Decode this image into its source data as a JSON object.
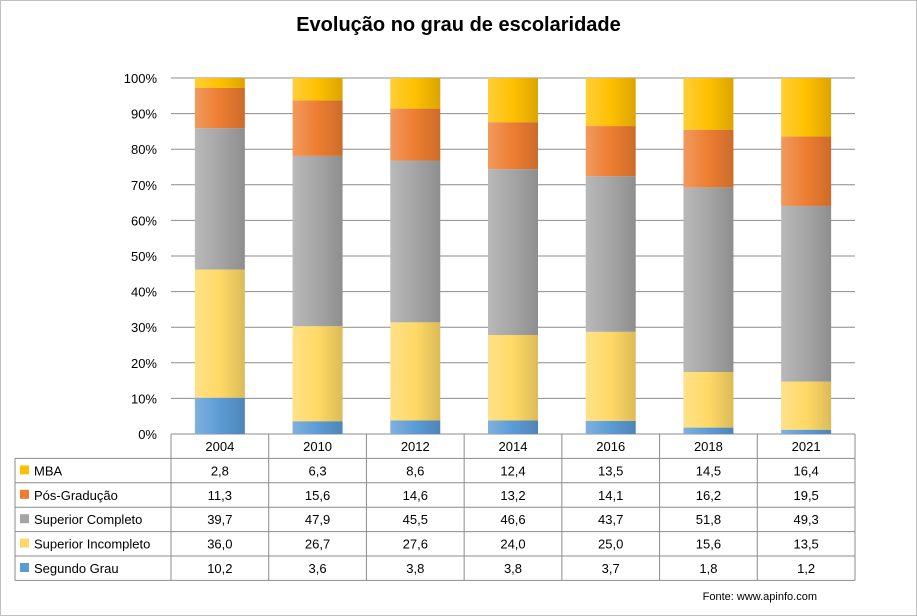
{
  "chart_data": {
    "type": "bar",
    "stacked": "percent",
    "title": "Evolução no grau de escolaridade",
    "categories": [
      "2004",
      "2010",
      "2012",
      "2014",
      "2016",
      "2018",
      "2021"
    ],
    "ylim": [
      0,
      100
    ],
    "yticks": [
      "0%",
      "10%",
      "20%",
      "30%",
      "40%",
      "50%",
      "60%",
      "70%",
      "80%",
      "90%",
      "100%"
    ],
    "grid": true,
    "legend": "data-table",
    "series": [
      {
        "name": "Segundo Grau",
        "color": "#5b9bd5",
        "values": [
          10.2,
          3.6,
          3.8,
          3.8,
          3.7,
          1.8,
          1.2
        ],
        "labels": [
          "10,2",
          "3,6",
          "3,8",
          "3,8",
          "3,7",
          "1,8",
          "1,2"
        ]
      },
      {
        "name": "Superior Incompleto",
        "color": "#ffd966",
        "values": [
          36.0,
          26.7,
          27.6,
          24.0,
          25.0,
          15.6,
          13.5
        ],
        "labels": [
          "36,0",
          "26,7",
          "27,6",
          "24,0",
          "25,0",
          "15,6",
          "13,5"
        ]
      },
      {
        "name": "Superior Completo",
        "color": "#a5a5a5",
        "values": [
          39.7,
          47.9,
          45.5,
          46.6,
          43.7,
          51.8,
          49.3
        ],
        "labels": [
          "39,7",
          "47,9",
          "45,5",
          "46,6",
          "43,7",
          "51,8",
          "49,3"
        ]
      },
      {
        "name": "Pós-Gradução",
        "color": "#ed7d31",
        "values": [
          11.3,
          15.6,
          14.6,
          13.2,
          14.1,
          16.2,
          19.5
        ],
        "labels": [
          "11,3",
          "15,6",
          "14,6",
          "13,2",
          "14,1",
          "16,2",
          "19,5"
        ]
      },
      {
        "name": "MBA",
        "color": "#ffc000",
        "values": [
          2.8,
          6.3,
          8.6,
          12.4,
          13.5,
          14.5,
          16.4
        ],
        "labels": [
          "2,8",
          "6,3",
          "8,6",
          "12,4",
          "13,5",
          "14,5",
          "16,4"
        ]
      }
    ],
    "table_row_order": [
      "MBA",
      "Pós-Gradução",
      "Superior Completo",
      "Superior Incompleto",
      "Segundo Grau"
    ],
    "source": "Fonte:  www.apinfo.com"
  }
}
